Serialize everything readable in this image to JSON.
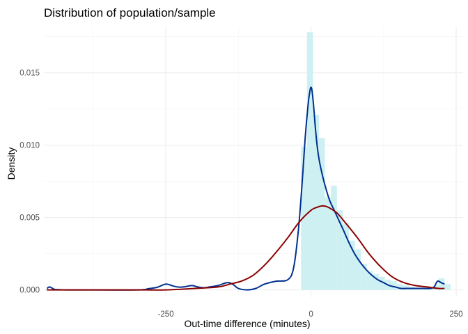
{
  "chart_data": {
    "type": "area",
    "title": "Distribution of population/sample",
    "xlabel": "Out-time difference (minutes)",
    "ylabel": "Density",
    "xlim": [
      -460,
      262
    ],
    "ylim": [
      -0.0005,
      0.0182
    ],
    "x_ticks": [
      -250,
      0,
      250
    ],
    "x_tick_labels": [
      "-250",
      "0",
      "250"
    ],
    "y_ticks": [
      0,
      0.005,
      0.01,
      0.015
    ],
    "y_tick_labels": [
      "0.000",
      "0.005",
      "0.010",
      "0.015"
    ],
    "grid": true,
    "legend": "none",
    "histogram": {
      "color": "#cdf0f2",
      "bin_width": 10.3,
      "bins": [
        {
          "x": -12,
          "density": 0.0099
        },
        {
          "x": -1.7,
          "density": 0.0178
        },
        {
          "x": 8.6,
          "density": 0.0121
        },
        {
          "x": 18.9,
          "density": 0.0105
        },
        {
          "x": 29.2,
          "density": 0.0064
        },
        {
          "x": 39.5,
          "density": 0.0072
        },
        {
          "x": 49.8,
          "density": 0.0055
        },
        {
          "x": 60.1,
          "density": 0.0046
        },
        {
          "x": 70.4,
          "density": 0.0034
        },
        {
          "x": 80.7,
          "density": 0.0028
        },
        {
          "x": 91.0,
          "density": 0.0018
        },
        {
          "x": 101.3,
          "density": 0.0013
        },
        {
          "x": 111.6,
          "density": 0.0011
        },
        {
          "x": 121.9,
          "density": 0.0009
        },
        {
          "x": 132.2,
          "density": 0.0007
        },
        {
          "x": 142.5,
          "density": 0.0006
        },
        {
          "x": 152.8,
          "density": 0.0004
        },
        {
          "x": 163.1,
          "density": 0.0003
        },
        {
          "x": 173.4,
          "density": 0.0002
        },
        {
          "x": 183.7,
          "density": 0.0001
        },
        {
          "x": 194.0,
          "density": 0.0001
        },
        {
          "x": 204.3,
          "density": 0.0002
        },
        {
          "x": 214.6,
          "density": 0.0003
        },
        {
          "x": 224.9,
          "density": 0.0008
        },
        {
          "x": 235.2,
          "density": 0.0004
        }
      ]
    },
    "series": [
      {
        "color": "#00308f",
        "x": [
          -455,
          -450,
          -445,
          -440,
          -420,
          -400,
          -300,
          -280,
          -265,
          -250,
          -240,
          -230,
          -220,
          -205,
          -195,
          -185,
          -175,
          -160,
          -145,
          -135,
          -125,
          -110,
          -95,
          -80,
          -60,
          -40,
          -30,
          -22,
          -15,
          -10,
          -5,
          -2,
          0,
          2,
          5,
          8,
          12,
          18,
          25,
          32,
          40,
          48,
          55,
          65,
          75,
          85,
          95,
          105,
          115,
          125,
          135,
          145,
          155,
          165,
          175,
          185,
          195,
          205,
          212,
          218,
          224,
          230
        ],
        "y": [
          0.0001,
          0.0002,
          0.0001,
          3e-05,
          0.0,
          0.0,
          0.0,
          8e-05,
          0.00018,
          0.0004,
          0.0003,
          0.0002,
          0.0002,
          0.0003,
          0.0002,
          0.00015,
          0.0002,
          0.0003,
          0.0005,
          0.0004,
          0.0001,
          0.0,
          0.0001,
          0.0004,
          0.0006,
          0.0007,
          0.0015,
          0.004,
          0.0075,
          0.0105,
          0.0128,
          0.0137,
          0.014,
          0.0137,
          0.0125,
          0.011,
          0.0095,
          0.0082,
          0.0071,
          0.0062,
          0.0055,
          0.0048,
          0.0042,
          0.0033,
          0.0025,
          0.0019,
          0.0014,
          0.001,
          0.0007,
          0.0005,
          0.0003,
          0.0002,
          0.0001,
          0.0001,
          0.0001,
          0.0001,
          0.0001,
          0.0001,
          0.0002,
          0.0006,
          0.0005,
          0.0004
        ]
      },
      {
        "color": "#8b0000",
        "x": [
          -455,
          -400,
          -350,
          -300,
          -250,
          -200,
          -160,
          -140,
          -120,
          -100,
          -80,
          -60,
          -40,
          -20,
          0,
          10,
          20,
          30,
          45,
          60,
          80,
          100,
          120,
          140,
          160,
          180,
          200,
          220,
          230
        ],
        "y": [
          0.0,
          0.0,
          0.0,
          0.0,
          0.0,
          0.0001,
          0.0002,
          0.0004,
          0.0006,
          0.001,
          0.0017,
          0.0026,
          0.0036,
          0.0047,
          0.0055,
          0.0057,
          0.0058,
          0.0057,
          0.0053,
          0.0046,
          0.0036,
          0.0025,
          0.0016,
          0.0009,
          0.0005,
          0.0003,
          0.0002,
          0.0001,
          0.0001
        ]
      }
    ]
  }
}
